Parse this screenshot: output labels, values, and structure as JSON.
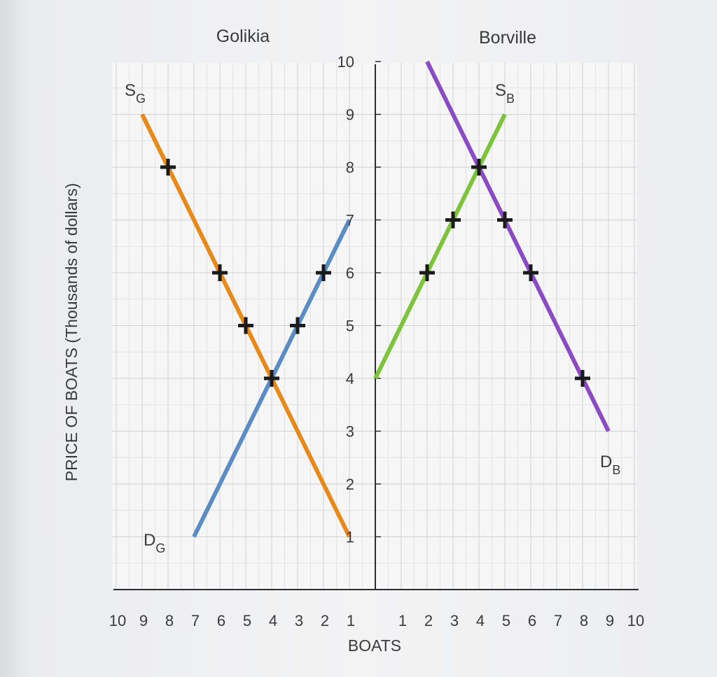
{
  "chart_data": {
    "type": "line",
    "panels": [
      {
        "title": "Golikia",
        "x_reversed": true,
        "series": [
          {
            "name": "S",
            "subscript": "G",
            "color": "#e8891a",
            "x": [
              9,
              1
            ],
            "y": [
              9,
              1
            ],
            "markers": [
              [
                8,
                8
              ],
              [
                6,
                6
              ],
              [
                5,
                5
              ]
            ]
          },
          {
            "name": "D",
            "subscript": "G",
            "color": "#5a8cc6",
            "x": [
              7,
              1
            ],
            "y": [
              1,
              7
            ],
            "markers": [
              [
                2,
                6
              ],
              [
                3,
                5
              ]
            ]
          }
        ],
        "equilibrium": [
          4,
          4
        ]
      },
      {
        "title": "Borville",
        "x_reversed": false,
        "series": [
          {
            "name": "S",
            "subscript": "B",
            "color": "#7cc43c",
            "x": [
              0,
              5
            ],
            "y": [
              4,
              9
            ],
            "markers": [
              [
                2,
                6
              ],
              [
                3,
                7
              ]
            ]
          },
          {
            "name": "D",
            "subscript": "B",
            "color": "#8b4bc4",
            "x": [
              2,
              9
            ],
            "y": [
              10,
              3
            ],
            "markers": [
              [
                5,
                7
              ],
              [
                6,
                6
              ],
              [
                8,
                4
              ]
            ]
          }
        ],
        "equilibrium": [
          4,
          8
        ]
      }
    ],
    "x_tick_labels_left": [
      "10",
      "9",
      "8",
      "7",
      "6",
      "5",
      "4",
      "3",
      "2",
      "1"
    ],
    "x_tick_labels_right": [
      "1",
      "2",
      "3",
      "4",
      "5",
      "6",
      "7",
      "8",
      "9",
      "10"
    ],
    "y_tick_labels": [
      "1",
      "2",
      "3",
      "4",
      "5",
      "6",
      "7",
      "8",
      "9",
      "10"
    ],
    "xlabel": "BOATS",
    "ylabel": "PRICE OF BOATS (Thousands of dollars)",
    "xlim": [
      0,
      10
    ],
    "ylim": [
      0,
      10
    ],
    "grid": true
  }
}
